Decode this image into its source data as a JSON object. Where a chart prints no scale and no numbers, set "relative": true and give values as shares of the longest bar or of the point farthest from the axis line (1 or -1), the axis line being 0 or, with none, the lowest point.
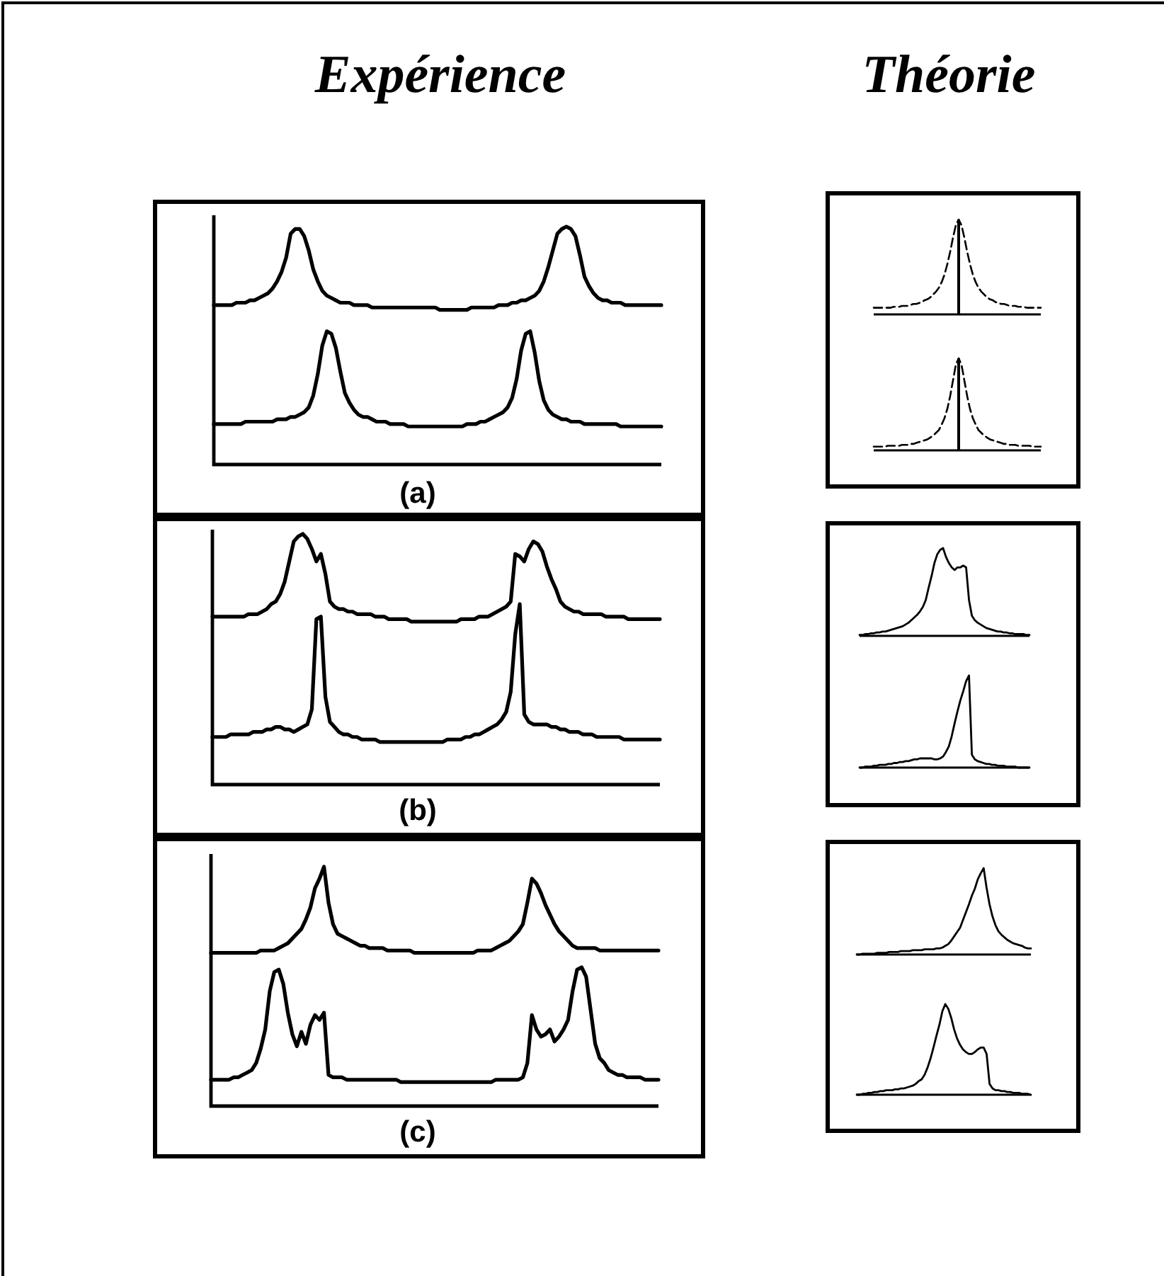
{
  "chart_data": [
    {
      "type": "line",
      "title": "Expérience",
      "xlabel": "(a)",
      "relative": true,
      "categories": [
        null,
        null,
        null,
        null,
        null,
        null,
        null,
        null,
        null,
        null,
        null,
        null,
        null,
        null,
        null,
        null,
        null,
        null,
        null,
        null,
        null,
        null,
        null,
        null,
        null,
        null,
        null,
        null,
        null,
        null,
        null,
        null,
        null,
        null,
        null,
        null,
        null,
        null,
        null,
        null,
        null,
        null,
        null,
        null,
        null,
        null,
        null,
        null,
        null,
        null,
        null,
        null,
        null,
        null,
        null,
        null,
        null,
        null,
        null,
        null,
        null,
        null,
        null,
        null,
        null,
        null,
        null,
        null,
        null,
        null,
        null,
        null,
        null,
        null,
        null,
        null,
        null,
        null,
        null,
        null,
        null,
        null,
        null,
        null,
        null,
        null,
        null,
        null,
        null,
        null,
        null,
        null,
        null,
        null,
        null,
        null,
        null,
        null,
        null,
        null
      ],
      "series": [
        {
          "color": "#000000",
          "values": [
            0.67,
            0.67,
            0.67,
            0.67,
            0.67,
            0.68,
            0.68,
            0.68,
            0.69,
            0.69,
            0.7,
            0.71,
            0.72,
            0.74,
            0.77,
            0.81,
            0.87,
            0.97,
            0.99,
            0.99,
            0.96,
            0.9,
            0.82,
            0.77,
            0.73,
            0.71,
            0.7,
            0.69,
            0.68,
            0.68,
            0.68,
            0.67,
            0.67,
            0.67,
            0.67,
            0.66,
            0.66,
            0.66,
            0.66,
            0.66,
            0.66,
            0.66,
            0.66,
            0.66,
            0.66,
            0.66,
            0.66,
            0.66,
            0.66,
            0.66,
            0.65,
            0.65,
            0.65,
            0.65,
            0.65,
            0.65,
            0.65,
            0.66,
            0.66,
            0.66,
            0.66,
            0.66,
            0.66,
            0.67,
            0.67,
            0.67,
            0.68,
            0.68,
            0.69,
            0.69,
            0.7,
            0.71,
            0.73,
            0.77,
            0.83,
            0.9,
            0.97,
            0.99,
            1.0,
            0.99,
            0.96,
            0.88,
            0.79,
            0.75,
            0.72,
            0.7,
            0.69,
            0.69,
            0.68,
            0.68,
            0.68,
            0.67,
            0.67,
            0.67,
            0.67,
            0.67,
            0.67,
            0.67,
            0.67,
            0.67
          ]
        },
        {
          "color": "#000000",
          "values": [
            0.17,
            0.17,
            0.17,
            0.17,
            0.17,
            0.17,
            0.17,
            0.18,
            0.18,
            0.18,
            0.18,
            0.18,
            0.18,
            0.18,
            0.19,
            0.19,
            0.19,
            0.2,
            0.2,
            0.21,
            0.22,
            0.24,
            0.29,
            0.38,
            0.5,
            0.56,
            0.55,
            0.49,
            0.39,
            0.3,
            0.26,
            0.23,
            0.21,
            0.2,
            0.2,
            0.19,
            0.18,
            0.18,
            0.18,
            0.17,
            0.17,
            0.17,
            0.17,
            0.16,
            0.16,
            0.16,
            0.16,
            0.16,
            0.16,
            0.16,
            0.16,
            0.16,
            0.16,
            0.16,
            0.16,
            0.16,
            0.17,
            0.17,
            0.17,
            0.18,
            0.18,
            0.19,
            0.2,
            0.21,
            0.22,
            0.24,
            0.28,
            0.36,
            0.48,
            0.55,
            0.56,
            0.47,
            0.35,
            0.27,
            0.23,
            0.21,
            0.2,
            0.19,
            0.19,
            0.18,
            0.18,
            0.18,
            0.17,
            0.17,
            0.17,
            0.17,
            0.17,
            0.17,
            0.17,
            0.17,
            0.16,
            0.16,
            0.16,
            0.16,
            0.16,
            0.16,
            0.16,
            0.16,
            0.16,
            0.16
          ]
        }
      ]
    },
    {
      "type": "line",
      "title": "Théorie",
      "relative": true,
      "line_style": "dashed",
      "categories": [
        null,
        null,
        null,
        null,
        null,
        null,
        null,
        null,
        null,
        null,
        null,
        null,
        null,
        null,
        null,
        null,
        null,
        null,
        null,
        null,
        null,
        null,
        null,
        null,
        null,
        null,
        null,
        null,
        null,
        null,
        null,
        null,
        null,
        null,
        null,
        null,
        null,
        null,
        null,
        null,
        null,
        null,
        null,
        null,
        null,
        null,
        null,
        null,
        null,
        null,
        null,
        null,
        null,
        null,
        null,
        null,
        null,
        null,
        null,
        null
      ],
      "series": [
        {
          "color": "#000000",
          "values": [
            0.07,
            0.07,
            0.07,
            0.07,
            0.07,
            0.07,
            0.07,
            0.08,
            0.08,
            0.08,
            0.09,
            0.09,
            0.09,
            0.1,
            0.11,
            0.11,
            0.12,
            0.13,
            0.15,
            0.16,
            0.18,
            0.21,
            0.24,
            0.28,
            0.34,
            0.42,
            0.53,
            0.66,
            0.81,
            0.94,
            1.0,
            0.94,
            0.81,
            0.66,
            0.53,
            0.42,
            0.34,
            0.28,
            0.24,
            0.21,
            0.18,
            0.16,
            0.15,
            0.13,
            0.12,
            0.11,
            0.11,
            0.1,
            0.09,
            0.09,
            0.09,
            0.08,
            0.08,
            0.08,
            0.07,
            0.07,
            0.07,
            0.07,
            0.07,
            0.07
          ]
        }
      ]
    },
    {
      "type": "line",
      "relative": true,
      "line_style": "dashed",
      "categories": [
        null,
        null,
        null,
        null,
        null,
        null,
        null,
        null,
        null,
        null,
        null,
        null,
        null,
        null,
        null,
        null,
        null,
        null,
        null,
        null,
        null,
        null,
        null,
        null,
        null,
        null,
        null,
        null,
        null,
        null,
        null,
        null,
        null,
        null,
        null,
        null,
        null,
        null,
        null,
        null,
        null,
        null,
        null,
        null,
        null,
        null,
        null,
        null,
        null,
        null,
        null,
        null,
        null,
        null,
        null,
        null,
        null,
        null,
        null,
        null
      ],
      "series": [
        {
          "color": "#000000",
          "values": [
            0.04,
            0.04,
            0.04,
            0.04,
            0.04,
            0.05,
            0.05,
            0.05,
            0.05,
            0.05,
            0.06,
            0.06,
            0.06,
            0.07,
            0.07,
            0.08,
            0.09,
            0.1,
            0.11,
            0.12,
            0.14,
            0.16,
            0.19,
            0.22,
            0.28,
            0.35,
            0.45,
            0.59,
            0.76,
            0.93,
            1.0,
            0.93,
            0.76,
            0.59,
            0.45,
            0.35,
            0.28,
            0.22,
            0.19,
            0.16,
            0.14,
            0.12,
            0.11,
            0.1,
            0.09,
            0.08,
            0.07,
            0.07,
            0.06,
            0.06,
            0.06,
            0.05,
            0.05,
            0.05,
            0.05,
            0.05,
            0.04,
            0.04,
            0.04,
            0.04
          ]
        }
      ]
    },
    {
      "type": "line",
      "xlabel": "(b)",
      "relative": true,
      "categories": [
        null,
        null,
        null,
        null,
        null,
        null,
        null,
        null,
        null,
        null,
        null,
        null,
        null,
        null,
        null,
        null,
        null,
        null,
        null,
        null,
        null,
        null,
        null,
        null,
        null,
        null,
        null,
        null,
        null,
        null,
        null,
        null,
        null,
        null,
        null,
        null,
        null,
        null,
        null,
        null,
        null,
        null,
        null,
        null,
        null,
        null,
        null,
        null,
        null,
        null,
        null,
        null,
        null,
        null,
        null,
        null,
        null,
        null,
        null,
        null,
        null,
        null,
        null,
        null,
        null,
        null,
        null,
        null,
        null,
        null,
        null,
        null,
        null,
        null,
        null,
        null,
        null,
        null,
        null,
        null,
        null,
        null,
        null,
        null,
        null,
        null,
        null,
        null,
        null,
        null,
        null,
        null,
        null,
        null,
        null,
        null,
        null,
        null,
        null,
        null
      ],
      "series": [
        {
          "color": "#000000",
          "values": [
            0.67,
            0.67,
            0.67,
            0.67,
            0.67,
            0.67,
            0.67,
            0.67,
            0.68,
            0.68,
            0.68,
            0.69,
            0.7,
            0.72,
            0.73,
            0.76,
            0.81,
            0.89,
            0.97,
            0.99,
            1.0,
            0.98,
            0.94,
            0.89,
            0.92,
            0.84,
            0.73,
            0.71,
            0.7,
            0.7,
            0.69,
            0.69,
            0.68,
            0.68,
            0.68,
            0.68,
            0.67,
            0.67,
            0.67,
            0.66,
            0.66,
            0.66,
            0.66,
            0.66,
            0.65,
            0.65,
            0.65,
            0.65,
            0.65,
            0.65,
            0.65,
            0.65,
            0.65,
            0.65,
            0.65,
            0.66,
            0.66,
            0.66,
            0.66,
            0.67,
            0.67,
            0.67,
            0.68,
            0.69,
            0.7,
            0.71,
            0.73,
            0.92,
            0.91,
            0.89,
            0.94,
            0.97,
            0.96,
            0.93,
            0.87,
            0.82,
            0.78,
            0.73,
            0.71,
            0.7,
            0.69,
            0.69,
            0.68,
            0.68,
            0.68,
            0.68,
            0.68,
            0.67,
            0.67,
            0.67,
            0.67,
            0.67,
            0.66,
            0.66,
            0.66,
            0.66,
            0.66,
            0.66,
            0.66,
            0.66
          ]
        },
        {
          "color": "#000000",
          "values": [
            0.19,
            0.19,
            0.19,
            0.19,
            0.2,
            0.2,
            0.2,
            0.2,
            0.2,
            0.21,
            0.21,
            0.21,
            0.22,
            0.22,
            0.23,
            0.23,
            0.22,
            0.22,
            0.21,
            0.22,
            0.23,
            0.24,
            0.3,
            0.66,
            0.67,
            0.35,
            0.25,
            0.23,
            0.21,
            0.2,
            0.2,
            0.19,
            0.19,
            0.18,
            0.18,
            0.18,
            0.18,
            0.17,
            0.17,
            0.17,
            0.17,
            0.17,
            0.17,
            0.17,
            0.17,
            0.17,
            0.17,
            0.17,
            0.17,
            0.17,
            0.17,
            0.17,
            0.18,
            0.18,
            0.18,
            0.18,
            0.19,
            0.19,
            0.2,
            0.2,
            0.21,
            0.22,
            0.23,
            0.24,
            0.26,
            0.29,
            0.37,
            0.6,
            0.72,
            0.28,
            0.25,
            0.24,
            0.24,
            0.24,
            0.24,
            0.23,
            0.23,
            0.22,
            0.22,
            0.21,
            0.21,
            0.21,
            0.2,
            0.2,
            0.2,
            0.19,
            0.19,
            0.19,
            0.19,
            0.19,
            0.19,
            0.18,
            0.18,
            0.18,
            0.18,
            0.18,
            0.18,
            0.18,
            0.18,
            0.18
          ]
        }
      ]
    },
    {
      "type": "line",
      "relative": true,
      "categories": [
        null,
        null,
        null,
        null,
        null,
        null,
        null,
        null,
        null,
        null,
        null,
        null,
        null,
        null,
        null,
        null,
        null,
        null,
        null,
        null,
        null,
        null,
        null,
        null,
        null,
        null,
        null,
        null,
        null,
        null,
        null,
        null,
        null,
        null,
        null,
        null,
        null,
        null,
        null,
        null,
        null,
        null,
        null,
        null,
        null,
        null,
        null,
        null,
        null,
        null,
        null,
        null,
        null,
        null,
        null,
        null,
        null,
        null,
        null,
        null
      ],
      "series": [
        {
          "color": "#000000",
          "values": [
            0.01,
            0.01,
            0.02,
            0.02,
            0.03,
            0.03,
            0.04,
            0.04,
            0.05,
            0.05,
            0.06,
            0.07,
            0.08,
            0.09,
            0.1,
            0.11,
            0.13,
            0.15,
            0.18,
            0.21,
            0.24,
            0.28,
            0.33,
            0.41,
            0.55,
            0.68,
            0.83,
            0.93,
            0.98,
            1.0,
            0.9,
            0.83,
            0.78,
            0.75,
            0.78,
            0.78,
            0.8,
            0.78,
            0.41,
            0.23,
            0.18,
            0.15,
            0.13,
            0.11,
            0.09,
            0.08,
            0.07,
            0.06,
            0.05,
            0.05,
            0.04,
            0.04,
            0.03,
            0.03,
            0.02,
            0.02,
            0.02,
            0.02,
            0.01,
            0.01
          ]
        }
      ]
    },
    {
      "type": "line",
      "relative": true,
      "categories": [
        null,
        null,
        null,
        null,
        null,
        null,
        null,
        null,
        null,
        null,
        null,
        null,
        null,
        null,
        null,
        null,
        null,
        null,
        null,
        null,
        null,
        null,
        null,
        null,
        null,
        null,
        null,
        null,
        null,
        null,
        null,
        null,
        null,
        null,
        null,
        null,
        null,
        null,
        null,
        null,
        null,
        null,
        null,
        null,
        null,
        null,
        null,
        null,
        null,
        null,
        null,
        null,
        null,
        null,
        null,
        null,
        null,
        null,
        null,
        null
      ],
      "series": [
        {
          "color": "#000000",
          "values": [
            0,
            0,
            0.01,
            0.01,
            0.01,
            0.02,
            0.02,
            0.03,
            0.03,
            0.03,
            0.04,
            0.04,
            0.05,
            0.05,
            0.06,
            0.06,
            0.07,
            0.07,
            0.08,
            0.09,
            0.09,
            0.1,
            0.1,
            0.1,
            0.1,
            0.1,
            0.09,
            0.09,
            0.1,
            0.12,
            0.17,
            0.23,
            0.34,
            0.48,
            0.61,
            0.73,
            0.83,
            0.94,
            1.0,
            0.14,
            0.09,
            0.07,
            0.06,
            0.05,
            0.04,
            0.04,
            0.03,
            0.03,
            0.02,
            0.02,
            0.02,
            0.01,
            0.01,
            0.01,
            0.01,
            0,
            0,
            0,
            0,
            0
          ]
        }
      ]
    },
    {
      "type": "line",
      "xlabel": "(c)",
      "relative": true,
      "categories": [
        null,
        null,
        null,
        null,
        null,
        null,
        null,
        null,
        null,
        null,
        null,
        null,
        null,
        null,
        null,
        null,
        null,
        null,
        null,
        null,
        null,
        null,
        null,
        null,
        null,
        null,
        null,
        null,
        null,
        null,
        null,
        null,
        null,
        null,
        null,
        null,
        null,
        null,
        null,
        null,
        null,
        null,
        null,
        null,
        null,
        null,
        null,
        null,
        null,
        null,
        null,
        null,
        null,
        null,
        null,
        null,
        null,
        null,
        null,
        null,
        null,
        null,
        null,
        null,
        null,
        null,
        null,
        null,
        null,
        null,
        null,
        null,
        null,
        null,
        null,
        null,
        null,
        null,
        null,
        null,
        null,
        null,
        null,
        null,
        null,
        null,
        null,
        null,
        null,
        null,
        null,
        null,
        null,
        null,
        null,
        null,
        null,
        null,
        null,
        null
      ],
      "series": [
        {
          "color": "#000000",
          "values": [
            0.64,
            0.64,
            0.64,
            0.64,
            0.64,
            0.64,
            0.64,
            0.64,
            0.64,
            0.64,
            0.64,
            0.65,
            0.65,
            0.65,
            0.65,
            0.66,
            0.67,
            0.68,
            0.7,
            0.72,
            0.74,
            0.78,
            0.83,
            0.91,
            0.95,
            1.0,
            0.85,
            0.76,
            0.72,
            0.71,
            0.7,
            0.69,
            0.68,
            0.67,
            0.67,
            0.66,
            0.66,
            0.66,
            0.66,
            0.65,
            0.65,
            0.65,
            0.65,
            0.65,
            0.65,
            0.64,
            0.64,
            0.64,
            0.64,
            0.64,
            0.64,
            0.64,
            0.64,
            0.64,
            0.64,
            0.64,
            0.64,
            0.64,
            0.64,
            0.65,
            0.65,
            0.65,
            0.65,
            0.66,
            0.67,
            0.68,
            0.69,
            0.71,
            0.73,
            0.76,
            0.85,
            0.95,
            0.93,
            0.89,
            0.84,
            0.8,
            0.76,
            0.73,
            0.71,
            0.69,
            0.67,
            0.66,
            0.66,
            0.66,
            0.66,
            0.66,
            0.65,
            0.65,
            0.65,
            0.65,
            0.65,
            0.65,
            0.65,
            0.65,
            0.65,
            0.65,
            0.65,
            0.65,
            0.65,
            0.65
          ]
        },
        {
          "color": "#000000",
          "values": [
            0.11,
            0.11,
            0.11,
            0.11,
            0.11,
            0.12,
            0.12,
            0.13,
            0.14,
            0.15,
            0.18,
            0.24,
            0.32,
            0.48,
            0.56,
            0.57,
            0.51,
            0.39,
            0.3,
            0.25,
            0.31,
            0.26,
            0.34,
            0.38,
            0.36,
            0.39,
            0.13,
            0.12,
            0.12,
            0.12,
            0.11,
            0.11,
            0.11,
            0.11,
            0.11,
            0.11,
            0.11,
            0.11,
            0.11,
            0.11,
            0.11,
            0.11,
            0.1,
            0.1,
            0.1,
            0.1,
            0.1,
            0.1,
            0.1,
            0.1,
            0.1,
            0.1,
            0.1,
            0.1,
            0.1,
            0.1,
            0.1,
            0.1,
            0.1,
            0.1,
            0.1,
            0.1,
            0.1,
            0.11,
            0.11,
            0.11,
            0.11,
            0.11,
            0.11,
            0.12,
            0.18,
            0.38,
            0.32,
            0.29,
            0.3,
            0.32,
            0.27,
            0.29,
            0.32,
            0.36,
            0.48,
            0.57,
            0.58,
            0.54,
            0.4,
            0.26,
            0.2,
            0.18,
            0.15,
            0.14,
            0.13,
            0.13,
            0.12,
            0.12,
            0.12,
            0.12,
            0.11,
            0.11,
            0.11,
            0.11
          ]
        }
      ]
    },
    {
      "type": "line",
      "relative": true,
      "categories": [
        null,
        null,
        null,
        null,
        null,
        null,
        null,
        null,
        null,
        null,
        null,
        null,
        null,
        null,
        null,
        null,
        null,
        null,
        null,
        null,
        null,
        null,
        null,
        null,
        null,
        null,
        null,
        null,
        null,
        null,
        null,
        null,
        null,
        null,
        null,
        null,
        null,
        null,
        null,
        null,
        null,
        null,
        null,
        null,
        null,
        null,
        null,
        null,
        null,
        null,
        null,
        null,
        null,
        null,
        null,
        null,
        null,
        null,
        null,
        null
      ],
      "series": [
        {
          "color": "#000000",
          "values": [
            0,
            0,
            0.01,
            0.01,
            0.01,
            0.01,
            0.01,
            0.02,
            0.02,
            0.02,
            0.02,
            0.03,
            0.03,
            0.03,
            0.03,
            0.04,
            0.04,
            0.04,
            0.04,
            0.05,
            0.05,
            0.05,
            0.05,
            0.06,
            0.06,
            0.06,
            0.06,
            0.07,
            0.07,
            0.08,
            0.1,
            0.12,
            0.16,
            0.21,
            0.26,
            0.31,
            0.4,
            0.49,
            0.58,
            0.68,
            0.76,
            0.87,
            0.94,
            1.0,
            0.77,
            0.58,
            0.44,
            0.34,
            0.27,
            0.23,
            0.2,
            0.17,
            0.15,
            0.13,
            0.12,
            0.11,
            0.1,
            0.08,
            0.07,
            0.07
          ]
        }
      ]
    },
    {
      "type": "line",
      "relative": true,
      "categories": [
        null,
        null,
        null,
        null,
        null,
        null,
        null,
        null,
        null,
        null,
        null,
        null,
        null,
        null,
        null,
        null,
        null,
        null,
        null,
        null,
        null,
        null,
        null,
        null,
        null,
        null,
        null,
        null,
        null,
        null,
        null,
        null,
        null,
        null,
        null,
        null,
        null,
        null,
        null,
        null,
        null,
        null,
        null,
        null,
        null,
        null,
        null,
        null,
        null,
        null,
        null,
        null,
        null,
        null,
        null,
        null,
        null,
        null,
        null,
        null
      ],
      "series": [
        {
          "color": "#000000",
          "values": [
            0,
            0,
            0.01,
            0.01,
            0.02,
            0.02,
            0.03,
            0.03,
            0.04,
            0.04,
            0.05,
            0.05,
            0.05,
            0.06,
            0.06,
            0.07,
            0.07,
            0.08,
            0.09,
            0.1,
            0.12,
            0.15,
            0.17,
            0.22,
            0.3,
            0.4,
            0.52,
            0.65,
            0.77,
            0.92,
            1.0,
            0.95,
            0.85,
            0.72,
            0.62,
            0.55,
            0.5,
            0.47,
            0.45,
            0.45,
            0.47,
            0.5,
            0.52,
            0.52,
            0.45,
            0.12,
            0.07,
            0.05,
            0.05,
            0.04,
            0.04,
            0.03,
            0.03,
            0.02,
            0.02,
            0.02,
            0.01,
            0.01,
            0.01,
            0
          ]
        }
      ]
    }
  ]
}
